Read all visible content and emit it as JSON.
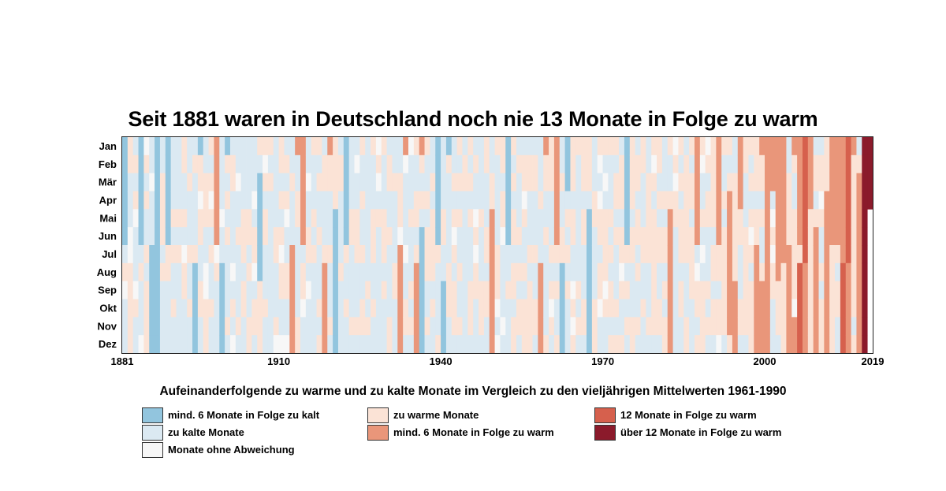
{
  "chart_data": {
    "type": "heatmap",
    "title": "Seit 1881 waren in Deutschland noch nie 13 Monate in Folge zu warm",
    "x_range": [
      1881,
      2019
    ],
    "x_tick_labels": [
      "1881",
      "1910",
      "1940",
      "1970",
      "2000",
      "2019"
    ],
    "x_ticks": [
      1881,
      1910,
      1940,
      1970,
      2000,
      2019
    ],
    "y_labels": [
      "Jan",
      "Feb",
      "Mär",
      "Apr",
      "Mai",
      "Jun",
      "Jul",
      "Aug",
      "Sep",
      "Okt",
      "Nov",
      "Dez"
    ],
    "grid": false,
    "categories": [
      {
        "key": "streak_cold",
        "label": "mind. 6 Monate in Folge zu kalt",
        "color": "#92c5de"
      },
      {
        "key": "cold",
        "label": "zu kalte Monate",
        "color": "#dbe9f2"
      },
      {
        "key": "normal",
        "label": "Monate ohne Abweichung",
        "color": "#f7f7f7"
      },
      {
        "key": "warm",
        "label": "zu warme Monate",
        "color": "#fbe3d6"
      },
      {
        "key": "streak_warm6",
        "label": "mind. 6 Monate in Folge zu warm",
        "color": "#e9967a"
      },
      {
        "key": "streak_warm12",
        "label": "12 Monate in Folge zu warm",
        "color": "#d6604d"
      },
      {
        "key": "streak_warm_over12",
        "label": "über 12 Monate in Folge zu warm",
        "color": "#8b1a2b"
      }
    ],
    "streak_runs": [
      {
        "start": "1881-01",
        "end": "1881-06",
        "category": "streak_cold"
      },
      {
        "start": "1884-01",
        "end": "1884-06",
        "category": "streak_cold"
      },
      {
        "start": "1886-07",
        "end": "1887-12",
        "category": "streak_cold"
      },
      {
        "start": "1889-01",
        "end": "1889-06",
        "category": "streak_cold"
      },
      {
        "start": "1894-08",
        "end": "1895-01",
        "category": "streak_cold"
      },
      {
        "start": "1899-08",
        "end": "1900-01",
        "category": "streak_cold"
      },
      {
        "start": "1906-03",
        "end": "1906-08",
        "category": "streak_cold"
      },
      {
        "start": "1920-05",
        "end": "1920-12",
        "category": "streak_cold"
      },
      {
        "start": "1922-01",
        "end": "1922-06",
        "category": "streak_cold"
      },
      {
        "start": "1936-06",
        "end": "1936-12",
        "category": "streak_cold"
      },
      {
        "start": "1939-01",
        "end": "1939-06",
        "category": "streak_cold"
      },
      {
        "start": "1940-09",
        "end": "1941-01",
        "category": "streak_cold"
      },
      {
        "start": "1962-08",
        "end": "1963-03",
        "category": "streak_cold"
      },
      {
        "start": "1967-05",
        "end": "1967-12",
        "category": "streak_cold"
      },
      {
        "start": "1952-01",
        "end": "1952-06",
        "category": "streak_cold"
      },
      {
        "start": "1974-01",
        "end": "1974-06",
        "category": "streak_cold"
      },
      {
        "start": "1898-01",
        "end": "1898-06",
        "category": "streak_warm6"
      },
      {
        "start": "1912-07",
        "end": "1913-01",
        "category": "streak_warm6"
      },
      {
        "start": "1914-01",
        "end": "1914-06",
        "category": "streak_warm6"
      },
      {
        "start": "1918-08",
        "end": "1919-01",
        "category": "streak_warm6"
      },
      {
        "start": "1932-07",
        "end": "1933-01",
        "category": "streak_warm6"
      },
      {
        "start": "1935-08",
        "end": "1936-01",
        "category": "streak_warm6"
      },
      {
        "start": "1949-05",
        "end": "1949-12",
        "category": "streak_warm6"
      },
      {
        "start": "1958-08",
        "end": "1959-01",
        "category": "streak_warm6"
      },
      {
        "start": "1961-01",
        "end": "1961-06",
        "category": "streak_warm6"
      },
      {
        "start": "1982-05",
        "end": "1982-12",
        "category": "streak_warm6"
      },
      {
        "start": "1987-01",
        "end": "1987-06",
        "category": "streak_warm6"
      },
      {
        "start": "1991-01",
        "end": "1991-06",
        "category": "streak_warm6"
      },
      {
        "start": "1993-04",
        "end": "1993-11",
        "category": "streak_warm6"
      },
      {
        "start": "1994-09",
        "end": "1995-04",
        "category": "streak_warm6"
      },
      {
        "start": "1998-07",
        "end": "1999-01",
        "category": "streak_warm6"
      },
      {
        "start": "1999-09",
        "end": "2000-06",
        "category": "streak_warm6"
      },
      {
        "start": "2000-07",
        "end": "2001-03",
        "category": "streak_warm6"
      },
      {
        "start": "2002-01",
        "end": "2002-08",
        "category": "streak_warm6"
      },
      {
        "start": "2003-01",
        "end": "2003-07",
        "category": "streak_warm6"
      },
      {
        "start": "2004-07",
        "end": "2005-01",
        "category": "streak_warm6"
      },
      {
        "start": "2005-11",
        "end": "2006-06",
        "category": "streak_warm6"
      },
      {
        "start": "2007-06",
        "end": "2008-04",
        "category": "streak_warm6"
      },
      {
        "start": "2009-06",
        "end": "2009-12",
        "category": "streak_warm6"
      },
      {
        "start": "2011-04",
        "end": "2011-12",
        "category": "streak_warm6"
      },
      {
        "start": "2012-01",
        "end": "2012-06",
        "category": "streak_warm6"
      },
      {
        "start": "2013-01",
        "end": "2013-06",
        "category": "streak_warm6"
      },
      {
        "start": "2014-01",
        "end": "2014-07",
        "category": "streak_warm6"
      },
      {
        "start": "2015-07",
        "end": "2016-01",
        "category": "streak_warm6"
      },
      {
        "start": "2017-03",
        "end": "2017-12",
        "category": "streak_warm6"
      },
      {
        "start": "2006-08",
        "end": "2007-07",
        "category": "streak_warm12"
      },
      {
        "start": "2014-08",
        "end": "2015-07",
        "category": "streak_warm12"
      },
      {
        "start": "2018-01",
        "end": "2018-12",
        "category": "streak_warm_over12"
      },
      {
        "start": "2019-01",
        "end": "2019-04",
        "category": "streak_warm_over12"
      }
    ],
    "single_month_base": "zu kalte Monate / zu warme Monate / Monate ohne Abweichung – übrige Monate"
  },
  "legend": {
    "title": "Aufeinanderfolgende zu warme und zu kalte Monate im Vergleich zu den vieljährigen Mittelwerten 1961-1990",
    "items": [
      {
        "label": "mind. 6 Monate in Folge zu kalt",
        "color": "#92c5de"
      },
      {
        "label": "zu kalte Monate",
        "color": "#dbe9f2"
      },
      {
        "label": "Monate ohne Abweichung",
        "color": "#f7f7f7"
      },
      {
        "label": "zu warme Monate",
        "color": "#fbe3d6"
      },
      {
        "label": "mind. 6 Monate in Folge zu warm",
        "color": "#e9967a"
      },
      {
        "label": "12 Monate in Folge zu warm",
        "color": "#d6604d"
      },
      {
        "label": "über 12 Monate in Folge zu warm",
        "color": "#8b1a2b"
      }
    ]
  }
}
